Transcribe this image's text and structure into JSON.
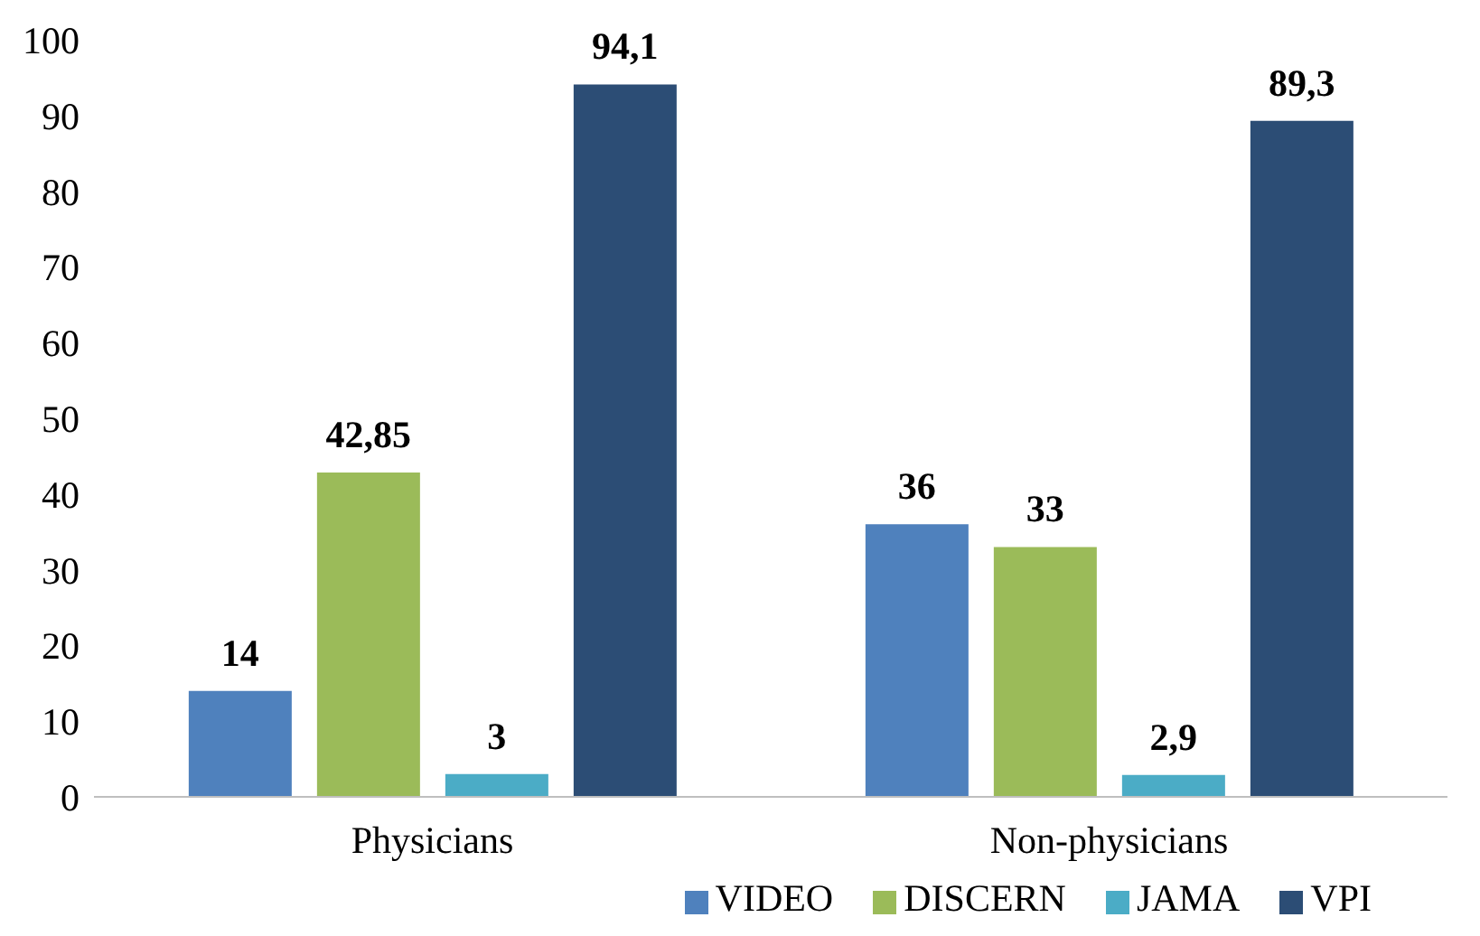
{
  "chart_data": {
    "type": "bar",
    "categories": [
      "Physicians",
      "Non-physicians"
    ],
    "series": [
      {
        "name": "VIDEO",
        "color": "#4f81bd",
        "values": [
          14,
          36
        ],
        "value_labels": [
          "14",
          "36"
        ]
      },
      {
        "name": "DISCERN",
        "color": "#9bbb59",
        "values": [
          42.85,
          33
        ],
        "value_labels": [
          "42,85",
          "33"
        ]
      },
      {
        "name": "JAMA",
        "color": "#4bacc6",
        "values": [
          3,
          2.9
        ],
        "value_labels": [
          "3",
          "2,9"
        ]
      },
      {
        "name": "VPI",
        "color": "#2c4d75",
        "values": [
          94.1,
          89.3
        ],
        "value_labels": [
          "94,1",
          "89,3"
        ]
      }
    ],
    "ylim": [
      0,
      100
    ],
    "yticks": [
      0,
      10,
      20,
      30,
      40,
      50,
      60,
      70,
      80,
      90,
      100
    ],
    "grid": false,
    "legend": "bottom right"
  }
}
